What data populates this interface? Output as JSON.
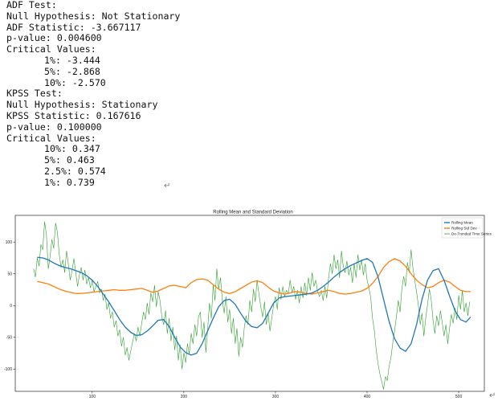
{
  "console": {
    "adf_title": "ADF Test:",
    "adf_null": "Null Hypothesis: Not Stationary",
    "adf_stat": "ADF Statistic: -3.667117",
    "adf_p": "p-value: 0.004600",
    "adf_cv_head": "Critical Values:",
    "adf_cv": [
      "1%: -3.444",
      "5%: -2.868",
      "10%: -2.570"
    ],
    "kpss_title": "KPSS Test:",
    "kpss_null": "Null Hypothesis: Stationary",
    "kpss_stat": "KPSS Statistic: 0.167616",
    "kpss_p": "p-value: 0.100000",
    "kpss_cv_head": "Critical Values:",
    "kpss_cv": [
      "10%: 0.347",
      "5%: 0.463",
      "2.5%: 0.574",
      "1%: 0.739"
    ],
    "return_glyph": "↵"
  },
  "chart_data": {
    "type": "line",
    "title": "Rolling Mean and Standard Deviation",
    "xlim": [
      16,
      528
    ],
    "ylim": [
      -135,
      142
    ],
    "xticks": [
      100,
      200,
      300,
      400,
      500
    ],
    "yticks": [
      100,
      50,
      0,
      -50,
      -100
    ],
    "legend_position": "top-right",
    "series": [
      {
        "name": "Rolling Mean",
        "color": "#1f77b4",
        "x": [
          40,
          46,
          52,
          58,
          64,
          70,
          76,
          82,
          88,
          94,
          100,
          106,
          112,
          118,
          124,
          130,
          136,
          142,
          148,
          154,
          160,
          166,
          172,
          178,
          184,
          190,
          196,
          202,
          208,
          214,
          220,
          226,
          232,
          238,
          244,
          250,
          256,
          262,
          268,
          274,
          280,
          286,
          292,
          298,
          304,
          310,
          316,
          322,
          328,
          334,
          340,
          346,
          352,
          358,
          364,
          370,
          376,
          382,
          388,
          394,
          400,
          406,
          412,
          418,
          424,
          430,
          436,
          442,
          448,
          454,
          460,
          466,
          472,
          478,
          484,
          490,
          496,
          502,
          508,
          513
        ],
        "values": [
          76,
          75,
          72,
          67,
          63,
          60,
          58,
          55,
          52,
          47,
          40,
          30,
          18,
          6,
          -8,
          -22,
          -34,
          -42,
          -47,
          -46,
          -40,
          -32,
          -23,
          -22,
          -33,
          -50,
          -65,
          -74,
          -78,
          -75,
          -60,
          -40,
          -20,
          -2,
          8,
          10,
          2,
          -12,
          -25,
          -33,
          -35,
          -28,
          -12,
          4,
          12,
          14,
          15,
          16,
          17,
          18,
          20,
          24,
          30,
          37,
          45,
          52,
          58,
          63,
          67,
          71,
          74,
          68,
          45,
          10,
          -25,
          -52,
          -67,
          -72,
          -60,
          -30,
          10,
          40,
          55,
          58,
          40,
          15,
          -8,
          -22,
          -26,
          -18
        ]
      },
      {
        "name": "Rolling Std Dev",
        "color": "#ff7f0e",
        "x": [
          40,
          46,
          52,
          58,
          64,
          70,
          76,
          82,
          88,
          94,
          100,
          106,
          112,
          118,
          124,
          130,
          136,
          142,
          148,
          154,
          160,
          166,
          172,
          178,
          184,
          190,
          196,
          202,
          208,
          214,
          220,
          226,
          232,
          238,
          244,
          250,
          256,
          262,
          268,
          274,
          280,
          286,
          292,
          298,
          304,
          310,
          316,
          322,
          328,
          334,
          340,
          346,
          352,
          358,
          364,
          370,
          376,
          382,
          388,
          394,
          400,
          406,
          412,
          418,
          424,
          430,
          436,
          442,
          448,
          454,
          460,
          466,
          472,
          478,
          484,
          490,
          496,
          502,
          508,
          513
        ],
        "values": [
          38,
          36,
          34,
          30,
          26,
          23,
          21,
          19,
          19,
          20,
          21,
          22,
          23,
          24,
          25,
          24,
          24,
          25,
          26,
          27,
          24,
          21,
          23,
          27,
          31,
          32,
          30,
          28,
          36,
          41,
          42,
          40,
          33,
          26,
          21,
          19,
          22,
          27,
          32,
          37,
          39,
          36,
          29,
          23,
          20,
          18,
          20,
          22,
          21,
          19,
          18,
          20,
          22,
          24,
          22,
          19,
          18,
          19,
          21,
          23,
          27,
          35,
          46,
          60,
          69,
          74,
          70,
          62,
          50,
          40,
          33,
          28,
          30,
          36,
          40,
          37,
          30,
          24,
          22,
          22
        ]
      },
      {
        "name": "De-Trended Time Series",
        "color": "#2ca02c",
        "x": [
          36,
          38,
          40,
          42,
          44,
          46,
          48,
          50,
          52,
          54,
          56,
          58,
          60,
          62,
          64,
          66,
          68,
          70,
          72,
          74,
          76,
          78,
          80,
          82,
          84,
          86,
          88,
          90,
          92,
          94,
          96,
          98,
          100,
          102,
          104,
          106,
          108,
          110,
          112,
          114,
          116,
          118,
          120,
          122,
          124,
          126,
          128,
          130,
          132,
          134,
          136,
          138,
          140,
          142,
          144,
          146,
          148,
          150,
          152,
          154,
          156,
          158,
          160,
          162,
          164,
          166,
          168,
          170,
          172,
          174,
          176,
          178,
          180,
          182,
          184,
          186,
          188,
          190,
          192,
          194,
          196,
          198,
          200,
          202,
          204,
          206,
          208,
          210,
          212,
          214,
          216,
          218,
          220,
          222,
          224,
          226,
          228,
          230,
          232,
          234,
          236,
          238,
          240,
          242,
          244,
          246,
          248,
          250,
          252,
          254,
          256,
          258,
          260,
          262,
          264,
          266,
          268,
          270,
          272,
          274,
          276,
          278,
          280,
          282,
          284,
          286,
          288,
          290,
          292,
          294,
          296,
          298,
          300,
          302,
          304,
          306,
          308,
          310,
          312,
          314,
          316,
          318,
          320,
          322,
          324,
          326,
          328,
          330,
          332,
          334,
          336,
          338,
          340,
          342,
          344,
          346,
          348,
          350,
          352,
          354,
          356,
          358,
          360,
          362,
          364,
          366,
          368,
          370,
          372,
          374,
          376,
          378,
          380,
          382,
          384,
          386,
          388,
          390,
          392,
          394,
          396,
          398,
          400,
          402,
          404,
          406,
          408,
          410,
          412,
          414,
          416,
          418,
          420,
          422,
          424,
          426,
          428,
          430,
          432,
          434,
          436,
          438,
          440,
          442,
          444,
          446,
          448,
          450,
          452,
          454,
          456,
          458,
          460,
          462,
          464,
          466,
          468,
          470,
          472,
          474,
          476,
          478,
          480,
          482,
          484,
          486,
          488,
          490,
          492,
          494,
          496,
          498,
          500,
          502,
          504,
          506,
          508,
          510,
          512
        ],
        "values": [
          58,
          45,
          75,
          62,
          96,
          88,
          132,
          112,
          58,
          76,
          104,
          90,
          130,
          115,
          80,
          60,
          72,
          52,
          86,
          64,
          40,
          55,
          74,
          52,
          30,
          48,
          60,
          40,
          56,
          34,
          44,
          28,
          40,
          22,
          30,
          38,
          20,
          26,
          8,
          18,
          -6,
          4,
          -20,
          -10,
          -34,
          -24,
          -48,
          -38,
          -64,
          -50,
          -78,
          -66,
          -86,
          -72,
          -58,
          -44,
          -56,
          -34,
          -48,
          -28,
          -10,
          -22,
          4,
          -14,
          20,
          6,
          32,
          -2,
          22,
          8,
          -18,
          -30,
          -8,
          -44,
          -20,
          -56,
          -34,
          -70,
          -48,
          -86,
          -62,
          -100,
          -74,
          -90,
          -60,
          -76,
          -44,
          -60,
          -30,
          -48,
          -18,
          -10,
          -50,
          -26,
          -74,
          -38,
          4,
          -20,
          32,
          8,
          58,
          26,
          44,
          8,
          -12,
          14,
          -26,
          -6,
          -44,
          -20,
          -60,
          -36,
          -80,
          -50,
          -66,
          -34,
          -16,
          -30,
          8,
          -10,
          26,
          6,
          40,
          18,
          -2,
          -18,
          6,
          -30,
          -12,
          -40,
          -20,
          2,
          14,
          -6,
          28,
          10,
          30,
          14,
          24,
          18,
          40,
          20,
          30,
          10,
          24,
          4,
          30,
          12,
          36,
          16,
          44,
          24,
          52,
          30,
          40,
          22,
          14,
          24,
          8,
          30,
          12,
          44,
          66,
          50,
          80,
          58,
          72,
          44,
          86,
          62,
          52,
          70,
          48,
          60,
          36,
          66,
          44,
          80,
          56,
          72,
          48,
          66,
          40,
          28,
          12,
          -20,
          -40,
          -70,
          -92,
          -108,
          -120,
          -132,
          -112,
          -118,
          -96,
          -82,
          -60,
          -40,
          -18,
          8,
          -10,
          26,
          46,
          30,
          68,
          52,
          88,
          60,
          40,
          22,
          0,
          -30,
          -12,
          -48,
          -20,
          2,
          26,
          10,
          -22,
          -44,
          -16,
          -32,
          -8,
          -26,
          -48,
          -30,
          -60,
          -36,
          -14,
          -28,
          -4,
          -22,
          16,
          -6,
          24,
          -10,
          4,
          -16,
          6
        ]
      }
    ]
  }
}
